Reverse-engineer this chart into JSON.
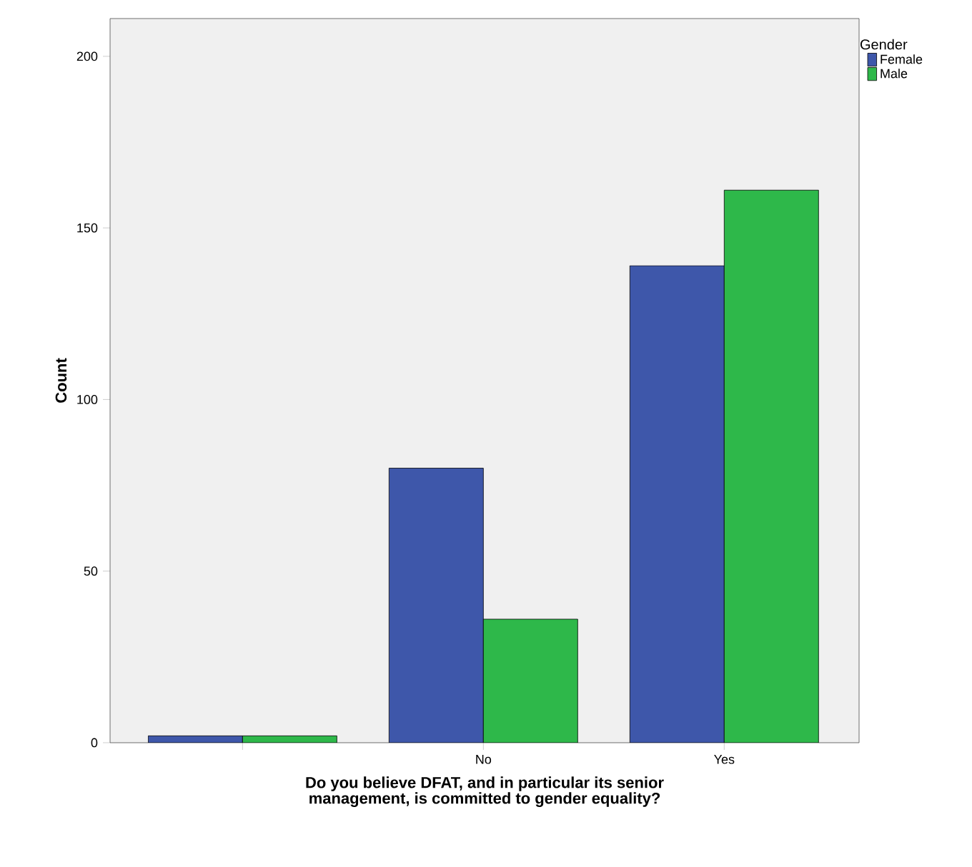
{
  "chart_data": {
    "type": "bar",
    "xlabel": "Do you believe DFAT, and in particular its senior\nmanagement, is committed to gender equality?",
    "ylabel": "Count",
    "legend_title": "Gender",
    "legend": "top right",
    "categories": [
      null,
      "No",
      "Yes"
    ],
    "series": [
      {
        "name": "Female",
        "color": "#3e57aa",
        "values": [
          2,
          80,
          139
        ]
      },
      {
        "name": "Male",
        "color": "#2eb84a",
        "values": [
          2,
          36,
          161
        ]
      }
    ],
    "ylim": [
      0,
      211
    ],
    "yticks": [
      0,
      50,
      100,
      150,
      200
    ]
  }
}
